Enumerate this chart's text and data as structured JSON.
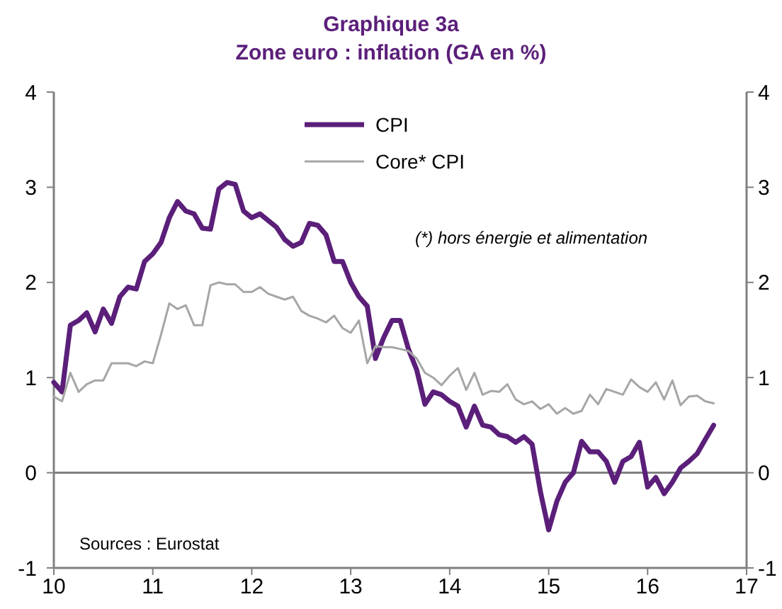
{
  "chart_data": {
    "type": "line",
    "title": "Graphique 3a",
    "subtitle": "Zone euro : inflation (GA en %)",
    "x": [
      10,
      10.083,
      10.167,
      10.25,
      10.333,
      10.417,
      10.5,
      10.583,
      10.667,
      10.75,
      10.833,
      10.917,
      11,
      11.083,
      11.167,
      11.25,
      11.333,
      11.417,
      11.5,
      11.583,
      11.667,
      11.75,
      11.833,
      11.917,
      12,
      12.083,
      12.167,
      12.25,
      12.333,
      12.417,
      12.5,
      12.583,
      12.667,
      12.75,
      12.833,
      12.917,
      13,
      13.083,
      13.167,
      13.25,
      13.333,
      13.417,
      13.5,
      13.583,
      13.667,
      13.75,
      13.833,
      13.917,
      14,
      14.083,
      14.167,
      14.25,
      14.333,
      14.417,
      14.5,
      14.583,
      14.667,
      14.75,
      14.833,
      14.917,
      15,
      15.083,
      15.167,
      15.25,
      15.333,
      15.417,
      15.5,
      15.583,
      15.667,
      15.75,
      15.833,
      15.917,
      16,
      16.083,
      16.167,
      16.25,
      16.333,
      16.417,
      16.5,
      16.583,
      16.667
    ],
    "series": [
      {
        "name": "CPI",
        "color": "#5b1f7a",
        "values": [
          0.95,
          0.85,
          1.55,
          1.6,
          1.68,
          1.48,
          1.72,
          1.57,
          1.85,
          1.95,
          1.93,
          2.22,
          2.3,
          2.42,
          2.68,
          2.85,
          2.75,
          2.72,
          2.57,
          2.56,
          2.98,
          3.05,
          3.03,
          2.75,
          2.68,
          2.72,
          2.65,
          2.58,
          2.45,
          2.38,
          2.42,
          2.62,
          2.6,
          2.5,
          2.22,
          2.22,
          2.0,
          1.85,
          1.75,
          1.2,
          1.42,
          1.6,
          1.6,
          1.3,
          1.08,
          0.72,
          0.85,
          0.82,
          0.75,
          0.7,
          0.48,
          0.7,
          0.5,
          0.48,
          0.4,
          0.38,
          0.32,
          0.38,
          0.3,
          -0.2,
          -0.6,
          -0.3,
          -0.1,
          0.0,
          0.33,
          0.22,
          0.22,
          0.12,
          -0.1,
          0.12,
          0.17,
          0.32,
          -0.15,
          -0.05,
          -0.22,
          -0.1,
          0.05,
          0.12,
          0.2,
          0.35,
          0.5
        ]
      },
      {
        "name": "Core* CPI",
        "color": "#a6a6a6",
        "values": [
          0.8,
          0.75,
          1.05,
          0.85,
          0.93,
          0.97,
          0.97,
          1.15,
          1.15,
          1.15,
          1.12,
          1.17,
          1.15,
          1.45,
          1.78,
          1.72,
          1.76,
          1.55,
          1.55,
          1.97,
          2.0,
          1.98,
          1.98,
          1.9,
          1.9,
          1.95,
          1.88,
          1.85,
          1.82,
          1.85,
          1.7,
          1.65,
          1.62,
          1.58,
          1.65,
          1.52,
          1.47,
          1.6,
          1.15,
          1.33,
          1.32,
          1.32,
          1.3,
          1.28,
          1.2,
          1.05,
          1.0,
          0.92,
          1.02,
          1.1,
          0.87,
          1.05,
          0.82,
          0.86,
          0.85,
          0.93,
          0.77,
          0.72,
          0.75,
          0.67,
          0.72,
          0.62,
          0.68,
          0.62,
          0.65,
          0.82,
          0.72,
          0.88,
          0.85,
          0.82,
          0.98,
          0.9,
          0.85,
          0.95,
          0.77,
          0.97,
          0.71,
          0.8,
          0.81,
          0.75,
          0.73
        ]
      }
    ],
    "xlim": [
      10,
      17
    ],
    "xticks": [
      10,
      11,
      12,
      13,
      14,
      15,
      16,
      17
    ],
    "ylim": [
      -1,
      4
    ],
    "yticks": [
      -1,
      0,
      1,
      2,
      3,
      4
    ],
    "y2lim": [
      -1,
      4
    ],
    "y2ticks": [
      -1,
      0,
      1,
      2,
      3,
      4
    ],
    "ref_lines": [
      {
        "axis": "y",
        "value": 0,
        "color": "#808080"
      }
    ],
    "legend": "top",
    "grid": false,
    "marker": "none",
    "line_style": "solid",
    "annotations": [
      "(*) hors énergie et alimentation",
      "Sources : Eurostat"
    ]
  }
}
